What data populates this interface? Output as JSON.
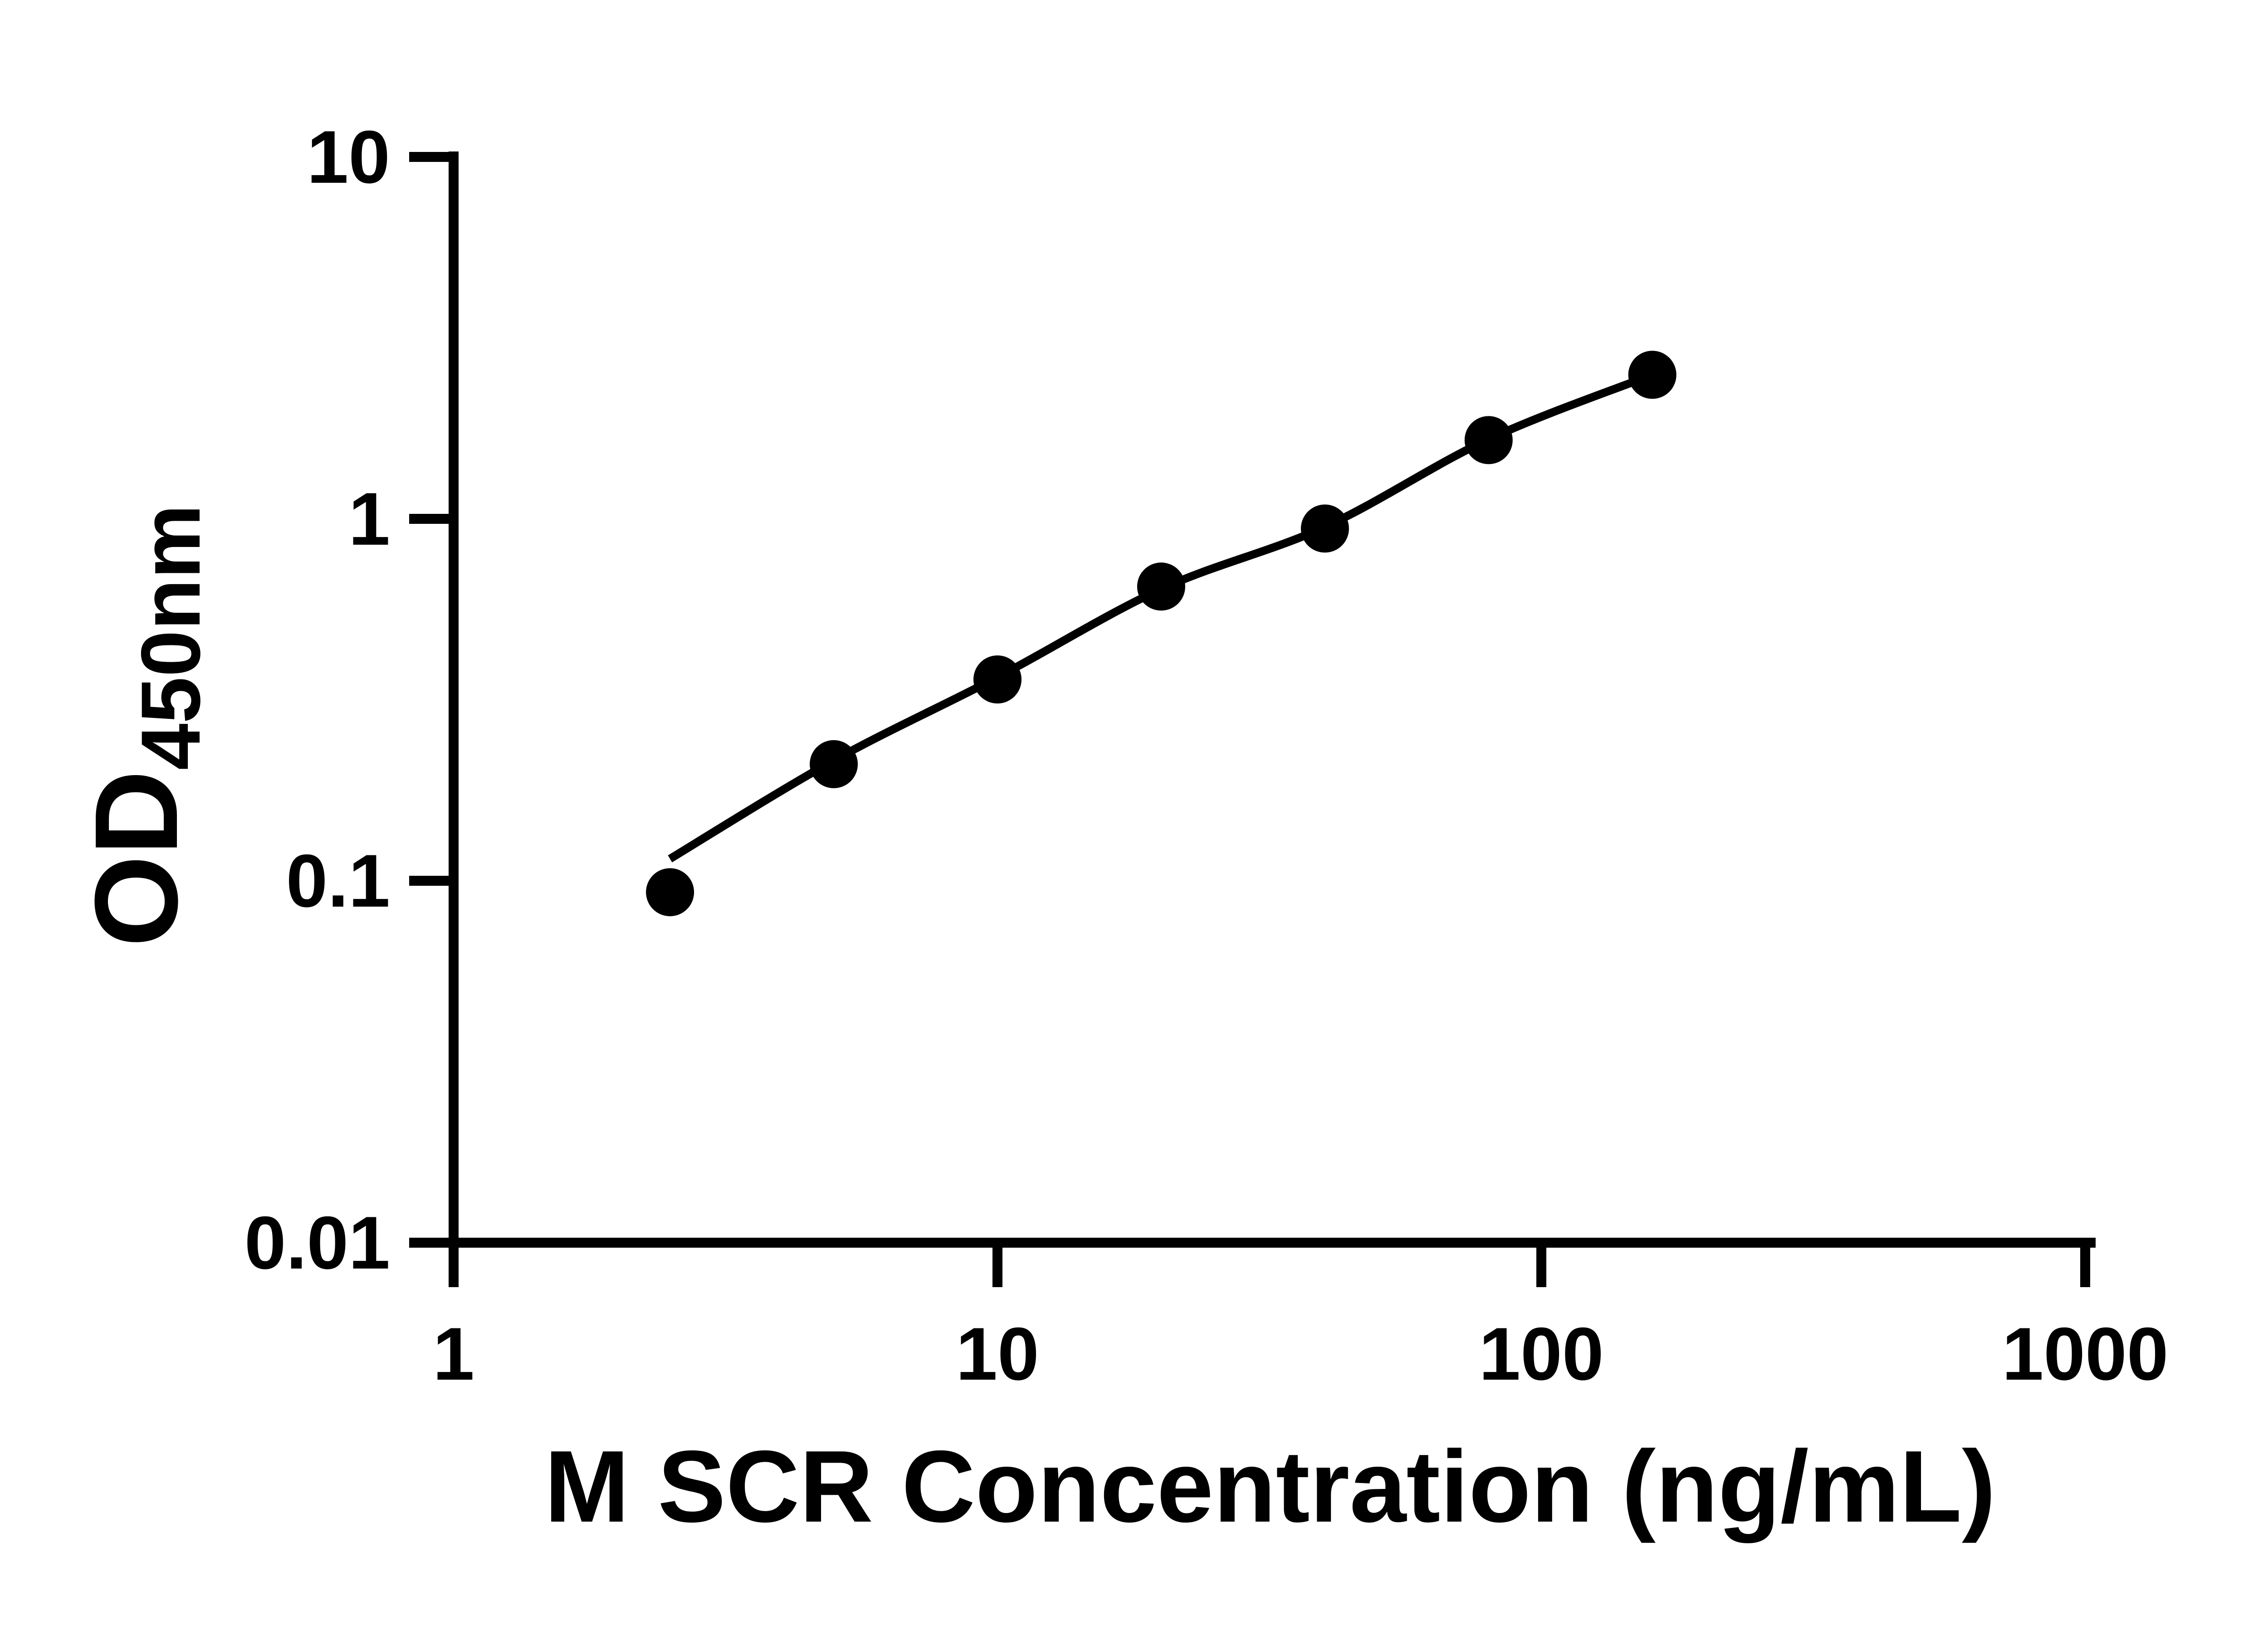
{
  "page": {
    "background_color": "#ffffff",
    "foreground_color": "#000000"
  },
  "chart_data": {
    "type": "scatter",
    "title": "",
    "xlabel": "M SCR Concentration (ng/mL)",
    "ylabel": "OD450nm",
    "ylabel_main": "OD",
    "ylabel_sub": "450nm",
    "x_scale": "log10",
    "y_scale": "log10",
    "xlim": [
      1,
      1000
    ],
    "ylim": [
      0.01,
      10
    ],
    "grid": false,
    "legend": "none",
    "axis_color": "#000000",
    "x_ticks": {
      "values": [
        1,
        10,
        100,
        1000
      ],
      "labels": [
        "1",
        "10",
        "100",
        "1000"
      ]
    },
    "y_ticks": {
      "values": [
        10,
        1,
        0.1,
        0.01
      ],
      "labels": [
        "10",
        "1",
        "0.1",
        "0.01"
      ]
    },
    "series": [
      {
        "name": "standard-points",
        "type": "scatter",
        "marker": "filled-circle",
        "color": "#000000",
        "x": [
          2.5,
          5,
          10,
          20,
          40,
          80,
          160
        ],
        "y": [
          0.093,
          0.21,
          0.36,
          0.65,
          0.94,
          1.65,
          2.5
        ]
      },
      {
        "name": "fit-line",
        "type": "line",
        "color": "#000000",
        "x": [
          2.5,
          5,
          10,
          20,
          40,
          80,
          160
        ],
        "y": [
          0.115,
          0.215,
          0.365,
          0.64,
          0.95,
          1.66,
          2.5
        ]
      }
    ]
  }
}
